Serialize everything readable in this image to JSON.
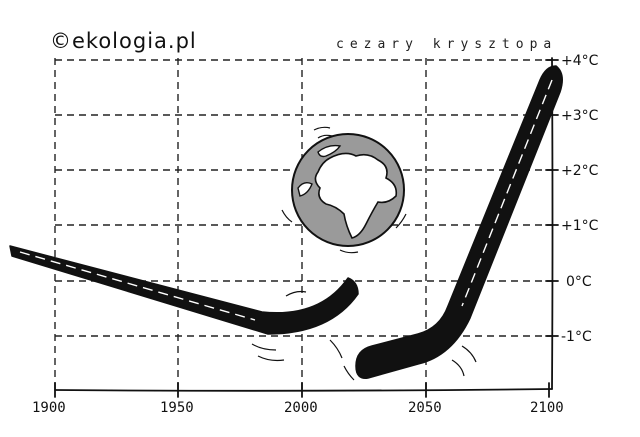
{
  "credit": "©ekologia.pl",
  "author_signature": "cezary krysztopa",
  "illustration": {
    "globe_icon": "earth-globe-icon",
    "colors": {
      "ink": "#111111",
      "globe_land": "#ffffff",
      "globe_water": "#9a9a9a",
      "background": "#ffffff"
    }
  },
  "x_axis": {
    "ticks": [
      "1900",
      "1950",
      "2000",
      "2050",
      "2100"
    ]
  },
  "y_axis": {
    "ticks": [
      "-1°C",
      "0°C",
      "+1°C",
      "+2°C",
      "+3°C",
      "+4°C"
    ]
  },
  "grid": true
}
